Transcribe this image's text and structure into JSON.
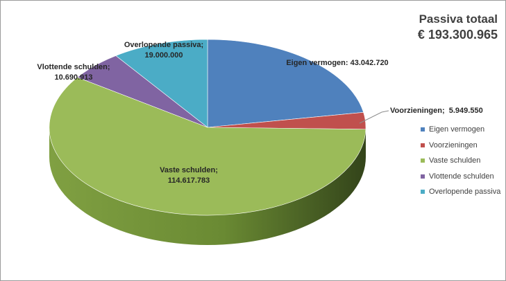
{
  "chart_data": {
    "type": "pie",
    "title": "Passiva totaal",
    "subtitle": "€ 193.300.965",
    "slices": [
      {
        "label": "Eigen vermogen",
        "value": 43042720,
        "display_value": "43.042.720",
        "color": "#4F81BD"
      },
      {
        "label": "Voorzieningen",
        "value": 5949550,
        "display_value": "5.949.550",
        "color": "#C0504D"
      },
      {
        "label": "Vaste schulden",
        "value": 114617783,
        "display_value": "114.617.783",
        "color": "#9BBB59"
      },
      {
        "label": "Vlottende schulden",
        "value": 10690913,
        "display_value": "10.690.913",
        "color": "#8064A2"
      },
      {
        "label": "Overlopende passiva",
        "value": 19000000,
        "display_value": "19.000.000",
        "color": "#4BACC6"
      }
    ],
    "legend_position": "right",
    "style": "3d-pie"
  }
}
